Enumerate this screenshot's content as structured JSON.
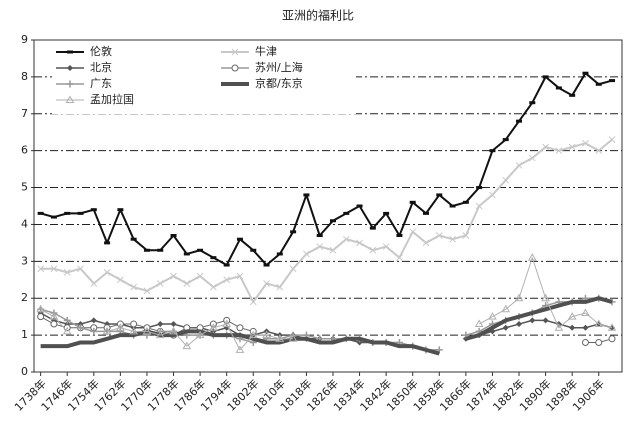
{
  "chart_data": {
    "type": "line",
    "title": "亚洲的福利比",
    "x": [
      1738,
      1742,
      1746,
      1750,
      1754,
      1758,
      1762,
      1766,
      1770,
      1774,
      1778,
      1782,
      1786,
      1790,
      1794,
      1798,
      1802,
      1806,
      1810,
      1814,
      1818,
      1822,
      1826,
      1830,
      1834,
      1838,
      1842,
      1846,
      1850,
      1854,
      1858,
      1862,
      1866,
      1870,
      1874,
      1878,
      1882,
      1886,
      1890,
      1894,
      1898,
      1902,
      1906,
      1910
    ],
    "xlim": [
      1736,
      1913
    ],
    "xticks": [
      {
        "value": 1738,
        "label": "1738年"
      },
      {
        "value": 1746,
        "label": "1746年"
      },
      {
        "value": 1754,
        "label": "1754年"
      },
      {
        "value": 1762,
        "label": "1762年"
      },
      {
        "value": 1770,
        "label": "1770年"
      },
      {
        "value": 1778,
        "label": "1778年"
      },
      {
        "value": 1786,
        "label": "1786年"
      },
      {
        "value": 1794,
        "label": "1794年"
      },
      {
        "value": 1802,
        "label": "1802年"
      },
      {
        "value": 1810,
        "label": "1810年"
      },
      {
        "value": 1818,
        "label": "1818年"
      },
      {
        "value": 1826,
        "label": "1826年"
      },
      {
        "value": 1834,
        "label": "1834年"
      },
      {
        "value": 1842,
        "label": "1842年"
      },
      {
        "value": 1850,
        "label": "1850年"
      },
      {
        "value": 1858,
        "label": "1858年"
      },
      {
        "value": 1866,
        "label": "1866年"
      },
      {
        "value": 1874,
        "label": "1874年"
      },
      {
        "value": 1882,
        "label": "1882年"
      },
      {
        "value": 1890,
        "label": "1890年"
      },
      {
        "value": 1898,
        "label": "1898年"
      },
      {
        "value": 1906,
        "label": "1906年"
      }
    ],
    "ylim": [
      0,
      9
    ],
    "yticks": [
      0,
      1,
      2,
      3,
      4,
      5,
      6,
      7,
      8,
      9
    ],
    "grid": true,
    "series": [
      {
        "name": "伦敦",
        "color": "#111111",
        "marker": "dash",
        "width": 2,
        "values": [
          4.3,
          4.2,
          4.3,
          4.3,
          4.4,
          3.5,
          4.4,
          3.6,
          3.3,
          3.3,
          3.7,
          3.2,
          3.3,
          3.1,
          2.9,
          3.6,
          3.3,
          2.9,
          3.2,
          3.8,
          4.8,
          3.7,
          4.1,
          4.3,
          4.5,
          3.9,
          4.3,
          3.7,
          4.6,
          4.3,
          4.8,
          4.5,
          4.6,
          5.0,
          6.0,
          6.3,
          6.8,
          7.3,
          8.0,
          7.7,
          7.5,
          8.1,
          7.8,
          7.9
        ]
      },
      {
        "name": "牛津",
        "color": "#c8c8c8",
        "marker": "x",
        "width": 2,
        "values": [
          2.8,
          2.8,
          2.7,
          2.8,
          2.4,
          2.7,
          2.5,
          2.3,
          2.2,
          2.4,
          2.6,
          2.4,
          2.6,
          2.3,
          2.5,
          2.6,
          1.9,
          2.4,
          2.3,
          2.8,
          3.2,
          3.4,
          3.3,
          3.6,
          3.5,
          3.3,
          3.4,
          3.1,
          3.8,
          3.5,
          3.7,
          3.6,
          3.7,
          4.5,
          4.8,
          5.2,
          5.6,
          5.8,
          6.1,
          6.0,
          6.1,
          6.2,
          6.0,
          6.3
        ]
      },
      {
        "name": "北京",
        "color": "#555555",
        "marker": "diamond",
        "width": 1.5,
        "values": [
          1.6,
          1.4,
          1.3,
          1.3,
          1.4,
          1.3,
          1.3,
          1.2,
          1.2,
          1.3,
          1.3,
          1.2,
          1.2,
          1.1,
          1.2,
          1.0,
          1.0,
          1.1,
          1.0,
          1.0,
          0.9,
          0.9,
          0.9,
          0.9,
          0.8,
          0.8,
          0.8,
          null,
          null,
          null,
          null,
          null,
          0.9,
          1.0,
          1.1,
          1.2,
          1.3,
          1.4,
          1.4,
          1.3,
          1.2,
          1.2,
          1.3,
          1.2
        ]
      },
      {
        "name": "苏州/上海",
        "color": "#666666",
        "marker": "circle",
        "width": 1,
        "values": [
          1.5,
          1.3,
          1.2,
          1.2,
          1.2,
          1.2,
          1.3,
          1.3,
          1.2,
          1.1,
          1.0,
          1.2,
          1.2,
          1.3,
          1.4,
          1.2,
          1.1,
          null,
          null,
          null,
          null,
          null,
          null,
          null,
          null,
          null,
          null,
          null,
          null,
          null,
          null,
          null,
          null,
          null,
          null,
          null,
          null,
          null,
          null,
          null,
          null,
          0.8,
          0.8,
          0.9
        ]
      },
      {
        "name": "广东",
        "color": "#999999",
        "marker": "plus",
        "width": 1.5,
        "values": [
          1.7,
          1.6,
          1.4,
          1.2,
          1.1,
          1.1,
          1.1,
          1.0,
          1.0,
          1.1,
          1.1,
          1.0,
          1.0,
          1.0,
          1.0,
          0.9,
          0.8,
          0.9,
          0.9,
          1.0,
          1.0,
          0.9,
          0.9,
          0.9,
          0.9,
          0.8,
          0.8,
          0.8,
          0.7,
          0.6,
          0.6,
          null,
          1.0,
          1.1,
          1.3,
          1.4,
          1.5,
          1.6,
          1.8,
          1.9,
          1.9,
          2.0,
          2.0,
          1.9
        ]
      },
      {
        "name": "京都/东京",
        "color": "#505050",
        "marker": "none",
        "width": 4,
        "values": [
          0.7,
          0.7,
          0.7,
          0.8,
          0.8,
          0.9,
          1.0,
          1.0,
          1.1,
          1.0,
          1.0,
          1.1,
          1.1,
          1.0,
          1.0,
          1.0,
          0.9,
          0.8,
          0.8,
          0.9,
          0.9,
          0.8,
          0.8,
          0.9,
          0.9,
          0.8,
          0.8,
          0.7,
          0.7,
          0.6,
          0.5,
          null,
          0.9,
          1.0,
          1.2,
          1.4,
          1.5,
          1.6,
          1.7,
          1.8,
          1.9,
          1.9,
          2.0,
          1.9
        ]
      },
      {
        "name": "孟加拉国",
        "color": "#b0b0b0",
        "marker": "triangle",
        "width": 1,
        "values": [
          1.7,
          1.5,
          1.1,
          null,
          null,
          1.1,
          1.2,
          1.1,
          1.1,
          1.0,
          1.1,
          0.7,
          1.0,
          1.2,
          1.3,
          0.6,
          1.0,
          1.0,
          0.9,
          0.9,
          null,
          null,
          null,
          null,
          null,
          null,
          null,
          null,
          null,
          null,
          null,
          null,
          null,
          1.3,
          1.5,
          1.7,
          2.0,
          3.1,
          2.0,
          1.2,
          1.5,
          1.6,
          1.3,
          1.2
        ]
      }
    ]
  }
}
